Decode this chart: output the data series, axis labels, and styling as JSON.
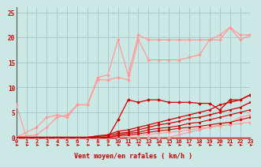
{
  "bg_color": "#cce8e4",
  "grid_color": "#aacccc",
  "line_color_dark": "#cc0000",
  "line_color_light": "#ff9999",
  "xlabel": "Vent moyen/en rafales ( km/h )",
  "xlabel_color": "#cc0000",
  "ylabel_ticks": [
    0,
    5,
    10,
    15,
    20,
    25
  ],
  "xticks": [
    0,
    1,
    2,
    3,
    4,
    5,
    6,
    7,
    8,
    9,
    10,
    11,
    12,
    13,
    14,
    15,
    16,
    17,
    18,
    19,
    20,
    21,
    22,
    23
  ],
  "xlim": [
    0,
    23
  ],
  "ylim": [
    0,
    26
  ],
  "series": [
    {
      "comment": "light pink - starts high at 0 then drops, straight line going up",
      "x": [
        0,
        1,
        2,
        3,
        4,
        5,
        6,
        7,
        8,
        9,
        10,
        11,
        12,
        13,
        14,
        15,
        16,
        17,
        18,
        19,
        20,
        21,
        22,
        23
      ],
      "y": [
        6.5,
        0,
        0,
        0,
        0,
        0,
        0,
        0,
        0,
        0,
        0,
        0,
        0,
        0,
        0,
        0,
        0.5,
        1.0,
        1.5,
        2.0,
        2.5,
        3.0,
        4.0,
        4.5
      ],
      "color": "#ff9999",
      "lw": 0.8,
      "marker": "D",
      "ms": 1.8
    },
    {
      "comment": "light pink - nearly flat near bottom, rises gently",
      "x": [
        0,
        1,
        2,
        3,
        4,
        5,
        6,
        7,
        8,
        9,
        10,
        11,
        12,
        13,
        14,
        15,
        16,
        17,
        18,
        19,
        20,
        21,
        22,
        23
      ],
      "y": [
        0,
        0,
        0,
        0,
        0,
        0,
        0,
        0,
        0,
        0,
        0.2,
        0.3,
        0.4,
        0.6,
        0.8,
        1.0,
        1.2,
        1.5,
        1.8,
        2.0,
        2.3,
        2.5,
        2.8,
        3.0
      ],
      "color": "#ff9999",
      "lw": 0.8,
      "marker": "D",
      "ms": 1.8
    },
    {
      "comment": "light pink diagonal - goes from 0 up to ~20, with dip",
      "x": [
        0,
        2,
        3,
        4,
        5,
        6,
        7,
        8,
        9,
        10,
        11,
        12,
        13,
        14,
        15,
        16,
        17,
        18,
        19,
        20,
        21,
        22,
        23
      ],
      "y": [
        0,
        2,
        4,
        4.5,
        4,
        6.5,
        6.5,
        11.5,
        11.5,
        12.0,
        11.5,
        19.5,
        15.5,
        15.5,
        15.5,
        15.5,
        16.0,
        16.5,
        19.5,
        19.5,
        22.0,
        20.5,
        20.5
      ],
      "color": "#ff9999",
      "lw": 0.9,
      "marker": "D",
      "ms": 1.8
    },
    {
      "comment": "light pink - steeper diagonal to ~20",
      "x": [
        0,
        2,
        3,
        4,
        5,
        6,
        7,
        8,
        9,
        10,
        11,
        12,
        13,
        14,
        15,
        16,
        17,
        18,
        19,
        20,
        21,
        22,
        23
      ],
      "y": [
        0,
        0.5,
        2,
        4,
        4.5,
        6.5,
        6.5,
        12,
        12.5,
        19.5,
        12.5,
        20.5,
        19.5,
        19.5,
        19.5,
        19.5,
        19.5,
        19.5,
        19.5,
        20.5,
        22.0,
        19.5,
        20.5
      ],
      "color": "#ff9999",
      "lw": 0.9,
      "marker": "D",
      "ms": 1.8
    },
    {
      "comment": "dark red - flat near 0, slowly rises",
      "x": [
        0,
        1,
        2,
        3,
        4,
        5,
        6,
        7,
        8,
        9,
        10,
        11,
        12,
        13,
        14,
        15,
        16,
        17,
        18,
        19,
        20,
        21,
        22,
        23
      ],
      "y": [
        0,
        0,
        0,
        0,
        0,
        0,
        0,
        0,
        0,
        0,
        0.3,
        0.5,
        0.7,
        1.0,
        1.3,
        1.5,
        1.8,
        2.0,
        2.2,
        2.5,
        2.8,
        3.0,
        3.5,
        4.0
      ],
      "color": "#cc0000",
      "lw": 0.8,
      "marker": "s",
      "ms": 1.8
    },
    {
      "comment": "dark red - rises steadily",
      "x": [
        0,
        1,
        2,
        3,
        4,
        5,
        6,
        7,
        8,
        9,
        10,
        11,
        12,
        13,
        14,
        15,
        16,
        17,
        18,
        19,
        20,
        21,
        22,
        23
      ],
      "y": [
        0,
        0,
        0,
        0,
        0,
        0,
        0,
        0,
        0,
        0,
        0.5,
        0.8,
        1.0,
        1.5,
        1.8,
        2.0,
        2.3,
        2.8,
        3.0,
        3.5,
        4.0,
        4.5,
        5.0,
        5.5
      ],
      "color": "#cc0000",
      "lw": 0.8,
      "marker": "s",
      "ms": 1.8
    },
    {
      "comment": "dark red - rises medium",
      "x": [
        0,
        1,
        2,
        3,
        4,
        5,
        6,
        7,
        8,
        9,
        10,
        11,
        12,
        13,
        14,
        15,
        16,
        17,
        18,
        19,
        20,
        21,
        22,
        23
      ],
      "y": [
        0,
        0,
        0,
        0,
        0,
        0,
        0,
        0,
        0.2,
        0.3,
        0.8,
        1.0,
        1.5,
        2.0,
        2.5,
        2.8,
        3.2,
        3.8,
        4.0,
        4.5,
        5.0,
        5.5,
        6.0,
        7.0
      ],
      "color": "#cc0000",
      "lw": 0.9,
      "marker": "s",
      "ms": 1.8
    },
    {
      "comment": "dark red - rises to ~8",
      "x": [
        0,
        1,
        2,
        3,
        4,
        5,
        6,
        7,
        8,
        9,
        10,
        11,
        12,
        13,
        14,
        15,
        16,
        17,
        18,
        19,
        20,
        21,
        22,
        23
      ],
      "y": [
        0,
        0,
        0,
        0,
        0,
        0,
        0,
        0,
        0.3,
        0.5,
        1.2,
        1.5,
        2.0,
        2.5,
        3.0,
        3.5,
        4.0,
        4.5,
        5.0,
        5.5,
        6.5,
        7.0,
        7.5,
        8.5
      ],
      "color": "#cc0000",
      "lw": 0.9,
      "marker": "s",
      "ms": 1.8
    },
    {
      "comment": "dark red irregular - lumpy around 7",
      "x": [
        8,
        9,
        10,
        11,
        12,
        13,
        14,
        15,
        16,
        17,
        18,
        19,
        20,
        21,
        22,
        23
      ],
      "y": [
        0,
        0,
        3.5,
        7.5,
        7.0,
        7.5,
        7.5,
        7.0,
        7.0,
        7.0,
        6.8,
        6.8,
        5.5,
        7.5,
        7.5,
        8.5
      ],
      "color": "#cc0000",
      "lw": 0.9,
      "marker": "D",
      "ms": 1.8
    }
  ]
}
